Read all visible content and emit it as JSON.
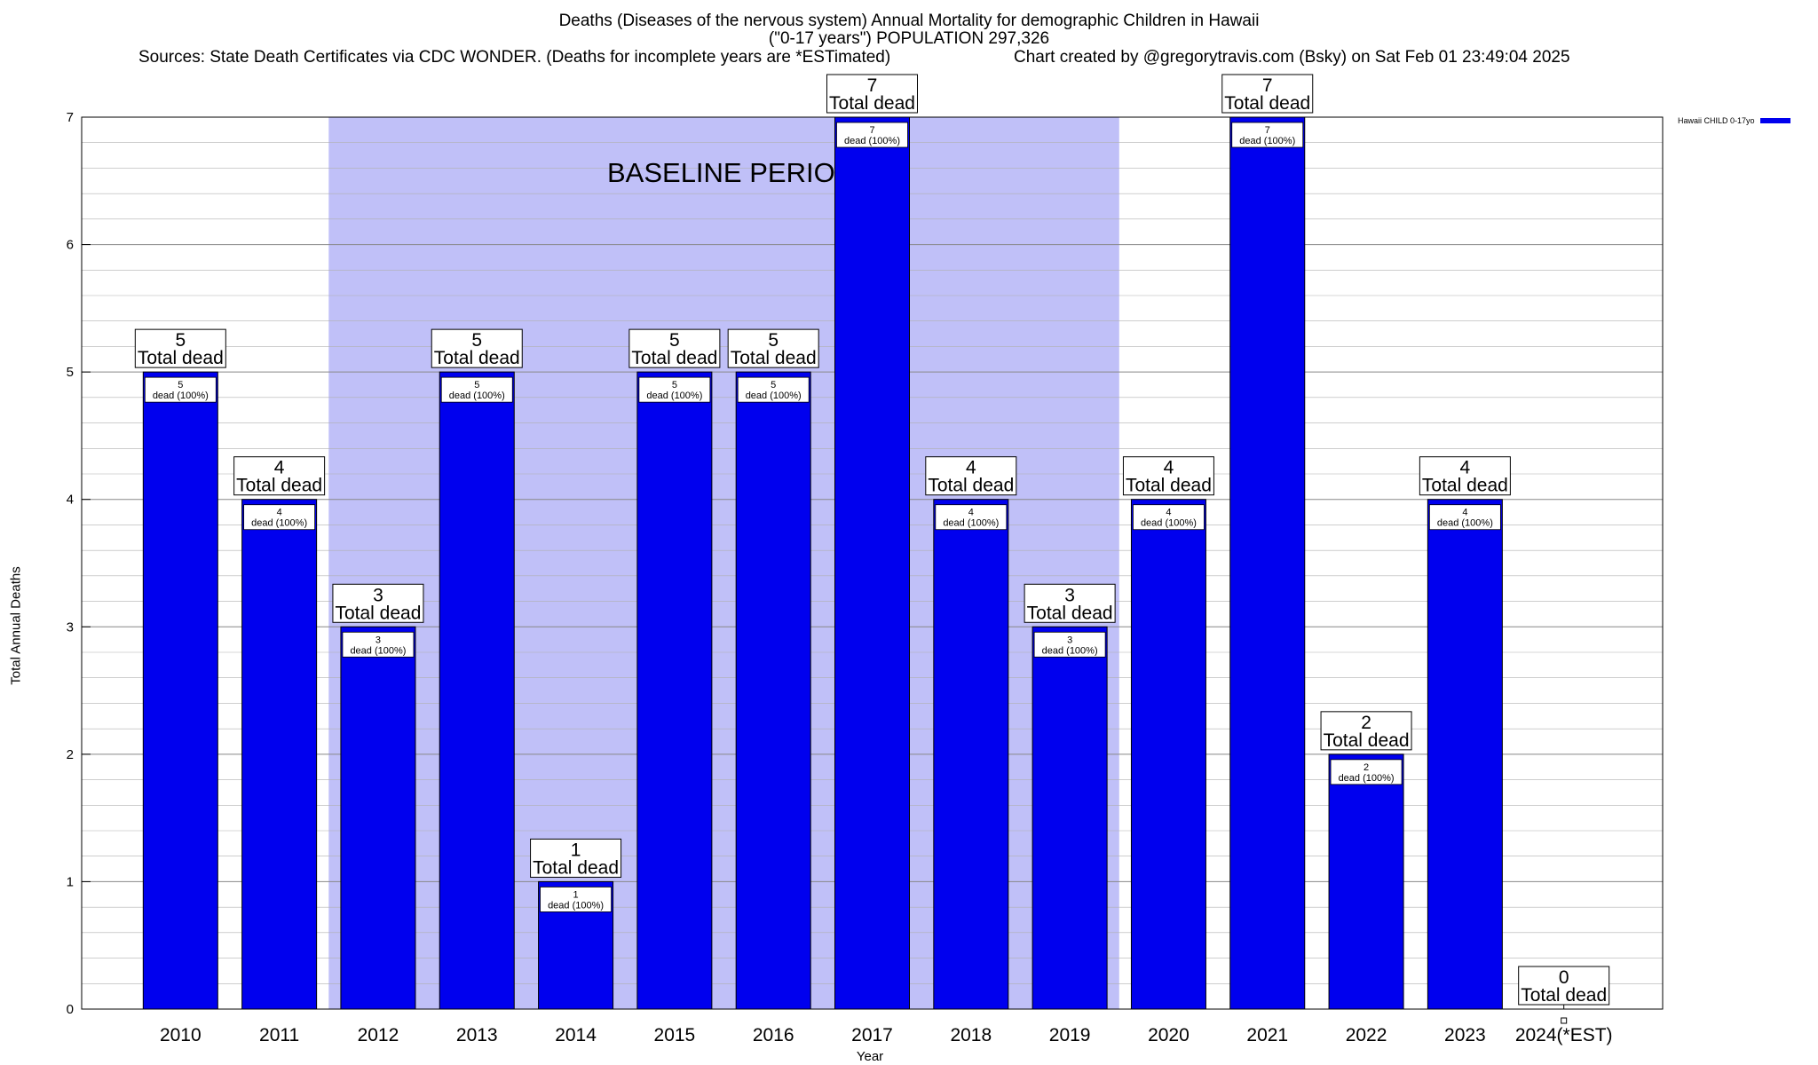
{
  "header": {
    "title_line1": "Deaths (Diseases of the nervous system) Annual Mortality for demographic Children in Hawaii",
    "title_line2": "(\"0-17 years\") POPULATION 297,326",
    "sources": "Sources: State Death Certificates via CDC WONDER. (Deaths for incomplete years are *ESTimated)",
    "credit": "Chart created by @gregorytravis.com (Bsky) on Sat Feb 01 23:49:04 2025"
  },
  "legend": {
    "label": "Hawaii CHILD 0-17yo",
    "color": "#0000ee"
  },
  "colors": {
    "bar": "#0000ee",
    "baseline": "#c0c0f8",
    "grid": "#b0b0b0"
  },
  "chart_data": {
    "type": "bar",
    "title": "Deaths (Diseases of the nervous system) Annual Mortality for demographic Children in Hawaii",
    "xlabel": "Year",
    "ylabel": "Total Annual Deaths",
    "ylim": [
      0,
      7
    ],
    "yticks": [
      0,
      1,
      2,
      3,
      4,
      5,
      6,
      7
    ],
    "categories": [
      "2010",
      "2011",
      "2012",
      "2013",
      "2014",
      "2015",
      "2016",
      "2017",
      "2018",
      "2019",
      "2020",
      "2021",
      "2022",
      "2023",
      "2024(*EST)"
    ],
    "series": [
      {
        "name": "Hawaii CHILD 0-17yo",
        "values": [
          5,
          4,
          3,
          5,
          1,
          5,
          5,
          7,
          4,
          3,
          4,
          7,
          2,
          4,
          0
        ]
      }
    ],
    "total_label_suffix": "Total dead",
    "inner_label_suffix": "dead (100%)",
    "baseline_period": {
      "label": "BASELINE PERIOD",
      "start": "2012",
      "end": "2019"
    },
    "grid": true,
    "legend_position": "top-right"
  }
}
